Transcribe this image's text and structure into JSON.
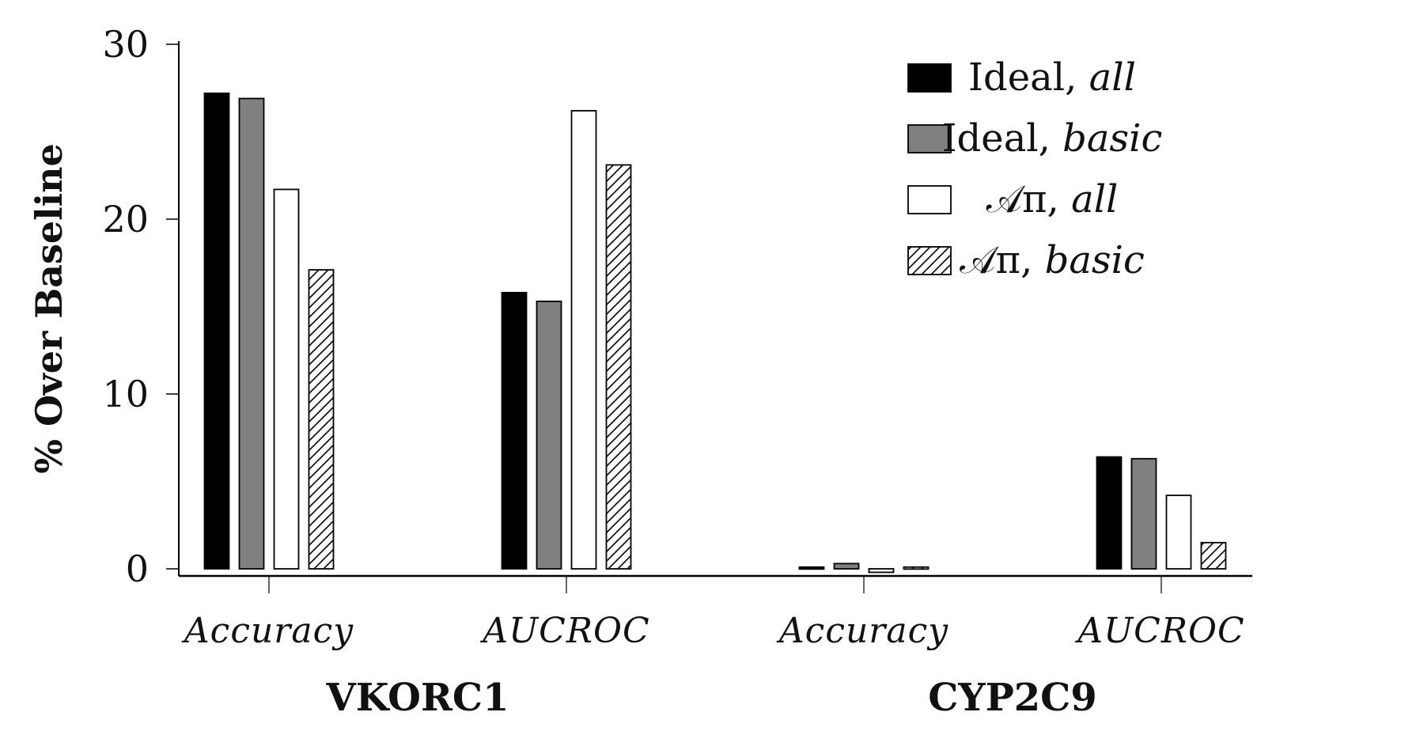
{
  "chart_data": {
    "type": "bar",
    "ylabel": "% Over Baseline",
    "ylim": [
      0,
      30
    ],
    "yticks": [
      "0",
      "10",
      "20",
      "30"
    ],
    "groups": [
      {
        "name": "VKORC1",
        "categories": [
          "Accuracy",
          "AUCROC"
        ]
      },
      {
        "name": "CYP2C9",
        "categories": [
          "Accuracy",
          "AUCROC"
        ]
      }
    ],
    "categories": [
      "Accuracy",
      "AUCROC",
      "Accuracy",
      "AUCROC"
    ],
    "series": [
      {
        "name": "Ideal, all",
        "label_main": "Ideal, ",
        "label_it": "all",
        "fill": "#000000",
        "pattern": "solid",
        "values": [
          27.2,
          15.8,
          0.1,
          6.4
        ]
      },
      {
        "name": "Ideal, basic",
        "label_main": "Ideal, ",
        "label_it": "basic",
        "fill": "#808080",
        "pattern": "solid",
        "values": [
          26.9,
          15.3,
          0.3,
          6.3
        ]
      },
      {
        "name": "A_π, all",
        "label_main": "𝒜π, ",
        "label_it": "all",
        "fill": "#ffffff",
        "pattern": "solid",
        "values": [
          21.7,
          26.2,
          -0.2,
          4.2
        ]
      },
      {
        "name": "A_π, basic",
        "label_main": "𝒜π, ",
        "label_it": "basic",
        "fill": "#ffffff",
        "pattern": "hatch",
        "values": [
          17.1,
          23.1,
          0.1,
          1.5
        ]
      }
    ],
    "legend_position": "top-right",
    "grid": false
  }
}
